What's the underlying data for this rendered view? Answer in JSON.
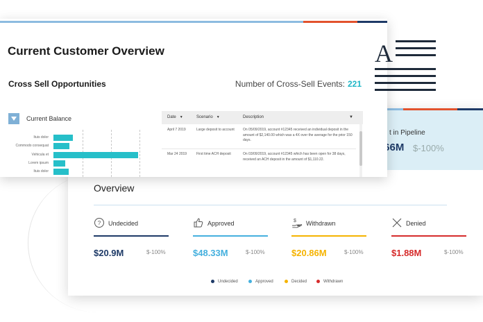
{
  "colors": {
    "accent_teal": "#26bfc9",
    "navy": "#1e3a67",
    "light_blue": "#8cbbe0",
    "orange": "#e2522d",
    "approved": "#45b0de",
    "decided": "#f5b300",
    "withdrawn": "#d62b2b"
  },
  "customer_overview": {
    "title": "Current Customer Overview",
    "cross_sell_title": "Cross Sell Opportunities",
    "events_label": "Number of Cross-Sell Events:",
    "events_count": "221",
    "current_balance_label": "Current Balance",
    "balance_rows": [
      {
        "label": "Ituis dolor",
        "value": 0.23
      },
      {
        "label": "Commodo consequat",
        "value": 0.19
      },
      {
        "label": "Vehicula et",
        "value": 1.0
      },
      {
        "label": "Lorem ipsum",
        "value": 0.14
      },
      {
        "label": "Ituis dolor",
        "value": 0.18
      }
    ],
    "table": {
      "headers": [
        "Date",
        "Scenario",
        "Description"
      ],
      "rows": [
        {
          "date": "April 7 2019",
          "scenario": "Large deposit to account",
          "description": "On 05/09/2019, account #12345 received an individual deposit in the amount of $2,140.00 which was a 4X over the average for the prior 150 days."
        },
        {
          "date": "Mar 24 2019",
          "scenario": "First time ACH deposit",
          "description": "On 03/09/2019, account #12345 which has been open for 38 days, received an ACH deposit in the amount of $1,110.22."
        }
      ]
    }
  },
  "overview": {
    "title": "Overview",
    "pipeline_label": "t in Pipeline",
    "pipeline_value": ".66M",
    "pipeline_change": "$-100%",
    "metrics": [
      {
        "icon": "question-circle-icon",
        "label": "Undecided",
        "value": "$20.9M",
        "change": "$-100%",
        "color": "#1e3a67"
      },
      {
        "icon": "thumbs-up-icon",
        "label": "Approved",
        "value": "$48.33M",
        "change": "$-100%",
        "color": "#45b0de"
      },
      {
        "icon": "hand-coin-icon",
        "label": "Withdrawn",
        "value": "$20.86M",
        "change": "$-100%",
        "color": "#f5b300"
      },
      {
        "icon": "x-icon",
        "label": "Denied",
        "value": "$1.88M",
        "change": "$-100%",
        "color": "#d62b2b"
      }
    ],
    "legend": [
      {
        "label": "Undecided",
        "color": "#1e3a67"
      },
      {
        "label": "Approved",
        "color": "#45b0de"
      },
      {
        "label": "Decided",
        "color": "#f5b300"
      },
      {
        "label": "Withdrawn",
        "color": "#d62b2b"
      }
    ]
  },
  "decor": {
    "letter_icon": "A"
  }
}
